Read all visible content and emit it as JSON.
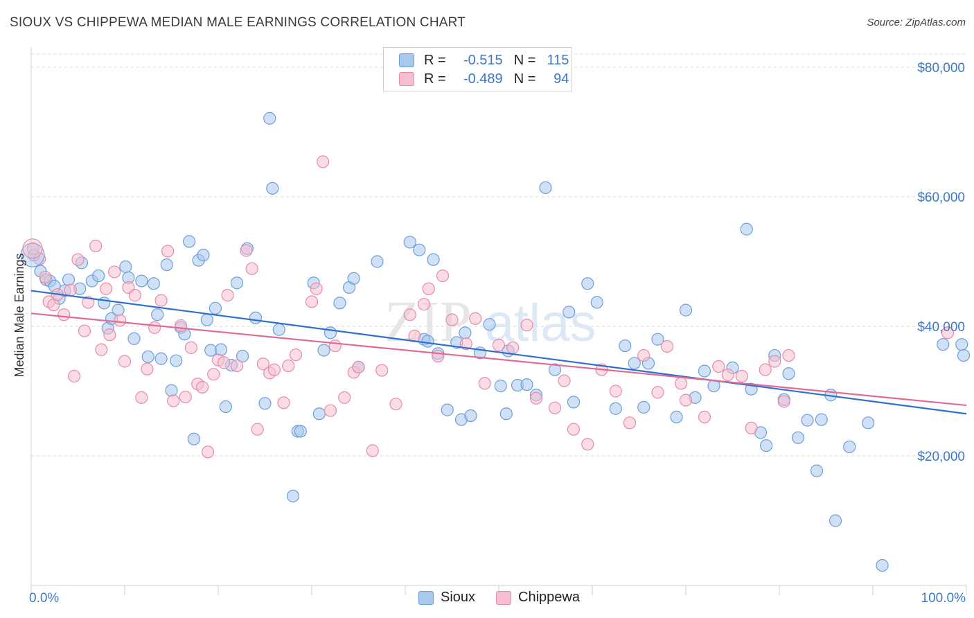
{
  "header": {
    "title": "SIOUX VS CHIPPEWA MEDIAN MALE EARNINGS CORRELATION CHART",
    "source": "Source: ZipAtlas.com"
  },
  "watermark": {
    "text_zip": "ZIP",
    "text_atlas": "atlas"
  },
  "legend": {
    "r_label": "R =",
    "n_label": "N =",
    "rows": [
      {
        "r": "-0.515",
        "n": "115"
      },
      {
        "r": "-0.489",
        "n": "94"
      }
    ]
  },
  "colors": {
    "sioux_fill": "#a9c8ee",
    "sioux_stroke": "#6b9fdc",
    "sioux_line": "#2f6fce",
    "chippewa_fill": "#f6bfd0",
    "chippewa_stroke": "#e98aa8",
    "chippewa_line": "#e06a94",
    "tick_label": "#3b78c9",
    "grid": "#d8d8d8"
  },
  "chart_data": {
    "type": "scatter",
    "title": "SIOUX VS CHIPPEWA MEDIAN MALE EARNINGS CORRELATION CHART",
    "xlabel": "",
    "ylabel": "Median Male Earnings",
    "xlim": [
      0,
      100
    ],
    "ylim": [
      0,
      80000
    ],
    "x_tick_labels": [
      "0.0%",
      "100.0%"
    ],
    "y_ticks": [
      20000,
      40000,
      60000,
      80000
    ],
    "y_tick_labels": [
      "$20,000",
      "$40,000",
      "$60,000",
      "$80,000"
    ],
    "grid": true,
    "series": [
      {
        "name": "Sioux",
        "trend": {
          "x": [
            0,
            100
          ],
          "y": [
            45500,
            26500
          ]
        },
        "points": [
          [
            0.3,
            51000
          ],
          [
            1.0,
            48500
          ],
          [
            1.6,
            47200
          ],
          [
            2.0,
            47000
          ],
          [
            2.5,
            46200
          ],
          [
            3.0,
            44300
          ],
          [
            3.6,
            45500
          ],
          [
            4.0,
            47200
          ],
          [
            5.2,
            45800
          ],
          [
            5.4,
            49800
          ],
          [
            6.5,
            47000
          ],
          [
            7.2,
            47800
          ],
          [
            7.8,
            43600
          ],
          [
            8.2,
            39700
          ],
          [
            8.6,
            41200
          ],
          [
            9.3,
            42500
          ],
          [
            10.1,
            49200
          ],
          [
            10.4,
            47500
          ],
          [
            11.0,
            38100
          ],
          [
            11.8,
            47000
          ],
          [
            12.5,
            35300
          ],
          [
            13.1,
            46600
          ],
          [
            13.5,
            41800
          ],
          [
            13.9,
            35000
          ],
          [
            14.5,
            49500
          ],
          [
            15.0,
            30100
          ],
          [
            15.5,
            34700
          ],
          [
            16.0,
            39800
          ],
          [
            16.4,
            38800
          ],
          [
            16.9,
            53100
          ],
          [
            17.4,
            22600
          ],
          [
            17.9,
            50200
          ],
          [
            18.4,
            51000
          ],
          [
            18.8,
            41000
          ],
          [
            19.2,
            36300
          ],
          [
            19.7,
            42800
          ],
          [
            20.3,
            36400
          ],
          [
            20.8,
            27600
          ],
          [
            21.4,
            34000
          ],
          [
            22.0,
            46700
          ],
          [
            22.6,
            35400
          ],
          [
            23.1,
            52000
          ],
          [
            24.0,
            41300
          ],
          [
            25.0,
            28100
          ],
          [
            25.5,
            72100
          ],
          [
            25.8,
            61300
          ],
          [
            26.5,
            39500
          ],
          [
            28.0,
            13800
          ],
          [
            28.5,
            23800
          ],
          [
            28.8,
            23800
          ],
          [
            30.2,
            46700
          ],
          [
            30.8,
            26500
          ],
          [
            31.3,
            36300
          ],
          [
            32.0,
            39000
          ],
          [
            33.0,
            43600
          ],
          [
            34.0,
            46000
          ],
          [
            34.5,
            47400
          ],
          [
            35.0,
            33700
          ],
          [
            37.0,
            50000
          ],
          [
            40.5,
            53000
          ],
          [
            41.5,
            51800
          ],
          [
            42.0,
            38000
          ],
          [
            42.4,
            37700
          ],
          [
            43.0,
            50300
          ],
          [
            43.5,
            35800
          ],
          [
            44.5,
            27100
          ],
          [
            45.5,
            37500
          ],
          [
            46.0,
            25600
          ],
          [
            46.4,
            39000
          ],
          [
            47.0,
            26200
          ],
          [
            48.0,
            35900
          ],
          [
            49.0,
            40300
          ],
          [
            50.2,
            30800
          ],
          [
            50.8,
            26500
          ],
          [
            51.0,
            36200
          ],
          [
            52.0,
            30900
          ],
          [
            53.0,
            31000
          ],
          [
            54.0,
            29400
          ],
          [
            55.0,
            61400
          ],
          [
            56.0,
            33300
          ],
          [
            57.5,
            42200
          ],
          [
            58.0,
            28300
          ],
          [
            59.5,
            46600
          ],
          [
            60.5,
            43700
          ],
          [
            62.5,
            27300
          ],
          [
            63.5,
            37000
          ],
          [
            64.5,
            34300
          ],
          [
            65.5,
            27500
          ],
          [
            66.0,
            34300
          ],
          [
            67.0,
            38000
          ],
          [
            69.0,
            26000
          ],
          [
            70.0,
            42500
          ],
          [
            71.0,
            29000
          ],
          [
            72.0,
            33100
          ],
          [
            73.0,
            30800
          ],
          [
            75.0,
            33600
          ],
          [
            76.5,
            55000
          ],
          [
            77.0,
            30300
          ],
          [
            78.0,
            23600
          ],
          [
            78.6,
            21600
          ],
          [
            79.5,
            35500
          ],
          [
            80.5,
            28700
          ],
          [
            81.0,
            32700
          ],
          [
            82.0,
            22800
          ],
          [
            83.0,
            25500
          ],
          [
            84.0,
            17700
          ],
          [
            84.5,
            25600
          ],
          [
            85.5,
            29400
          ],
          [
            86.0,
            10000
          ],
          [
            87.5,
            21400
          ],
          [
            89.5,
            25100
          ],
          [
            91.0,
            3100
          ],
          [
            97.5,
            37200
          ],
          [
            99.5,
            37200
          ],
          [
            100.5,
            35500
          ]
        ]
      },
      {
        "name": "Chippewa",
        "trend": {
          "x": [
            0,
            100
          ],
          "y": [
            42000,
            27800
          ]
        },
        "points": [
          [
            0.2,
            52000
          ],
          [
            0.9,
            50400
          ],
          [
            1.5,
            47600
          ],
          [
            1.9,
            43800
          ],
          [
            2.4,
            43300
          ],
          [
            2.8,
            44900
          ],
          [
            3.5,
            41800
          ],
          [
            4.2,
            45600
          ],
          [
            4.6,
            32300
          ],
          [
            5.0,
            50300
          ],
          [
            5.7,
            39300
          ],
          [
            6.1,
            43700
          ],
          [
            6.9,
            52400
          ],
          [
            7.5,
            36400
          ],
          [
            8.0,
            45800
          ],
          [
            8.4,
            38700
          ],
          [
            8.9,
            48400
          ],
          [
            9.5,
            40900
          ],
          [
            10.0,
            34600
          ],
          [
            10.4,
            46000
          ],
          [
            11.1,
            44800
          ],
          [
            11.8,
            29000
          ],
          [
            12.4,
            33400
          ],
          [
            13.2,
            39800
          ],
          [
            13.9,
            44000
          ],
          [
            14.6,
            51600
          ],
          [
            15.2,
            28500
          ],
          [
            16.0,
            40100
          ],
          [
            16.5,
            29100
          ],
          [
            17.1,
            36700
          ],
          [
            17.8,
            31100
          ],
          [
            18.3,
            30600
          ],
          [
            18.9,
            20600
          ],
          [
            19.5,
            32600
          ],
          [
            20.0,
            34800
          ],
          [
            20.6,
            34400
          ],
          [
            21.0,
            44800
          ],
          [
            22.0,
            33900
          ],
          [
            23.0,
            51700
          ],
          [
            23.6,
            48900
          ],
          [
            24.2,
            24100
          ],
          [
            24.8,
            34200
          ],
          [
            25.5,
            32800
          ],
          [
            26.0,
            33300
          ],
          [
            27.0,
            28200
          ],
          [
            27.5,
            33900
          ],
          [
            28.3,
            35600
          ],
          [
            30.0,
            43800
          ],
          [
            30.5,
            45800
          ],
          [
            31.2,
            65400
          ],
          [
            32.0,
            27000
          ],
          [
            32.5,
            37000
          ],
          [
            33.5,
            29000
          ],
          [
            34.5,
            32900
          ],
          [
            35.0,
            33700
          ],
          [
            36.5,
            20800
          ],
          [
            37.5,
            33200
          ],
          [
            39.0,
            28000
          ],
          [
            40.5,
            41800
          ],
          [
            41.0,
            38500
          ],
          [
            42.0,
            43400
          ],
          [
            42.5,
            45800
          ],
          [
            43.5,
            35400
          ],
          [
            44.0,
            47800
          ],
          [
            45.0,
            41000
          ],
          [
            46.5,
            37300
          ],
          [
            47.5,
            41200
          ],
          [
            48.5,
            31200
          ],
          [
            50.0,
            37100
          ],
          [
            51.5,
            36700
          ],
          [
            53.0,
            40200
          ],
          [
            54.0,
            28900
          ],
          [
            56.0,
            27400
          ],
          [
            57.0,
            31600
          ],
          [
            58.0,
            24100
          ],
          [
            59.5,
            21800
          ],
          [
            61.0,
            33300
          ],
          [
            62.5,
            30000
          ],
          [
            64.0,
            25100
          ],
          [
            65.5,
            35500
          ],
          [
            67.0,
            29800
          ],
          [
            68.0,
            36900
          ],
          [
            69.5,
            31200
          ],
          [
            70.0,
            28600
          ],
          [
            72.0,
            26000
          ],
          [
            73.5,
            33800
          ],
          [
            74.5,
            32500
          ],
          [
            76.0,
            32300
          ],
          [
            77.0,
            24300
          ],
          [
            78.5,
            33300
          ],
          [
            79.5,
            34600
          ],
          [
            80.5,
            28400
          ],
          [
            81.0,
            35500
          ],
          [
            98.0,
            39000
          ]
        ]
      }
    ]
  },
  "bottom_legend": {
    "items": [
      "Sioux",
      "Chippewa"
    ]
  }
}
